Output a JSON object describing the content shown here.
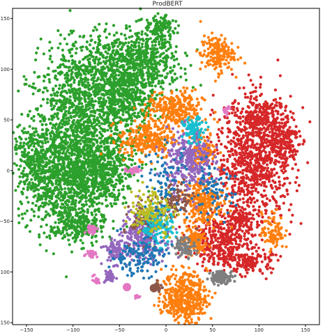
{
  "chart_data": {
    "type": "scatter",
    "title": "ProdBERT",
    "xlabel": "",
    "ylabel": "",
    "xlim": [
      -165,
      165
    ],
    "ylim": [
      -152,
      160
    ],
    "xticks": [
      -150,
      -100,
      -50,
      0,
      50,
      100,
      150
    ],
    "xtick_labels": [
      "−150",
      "−100",
      "−50",
      "0",
      "50",
      "100",
      "150"
    ],
    "yticks": [
      -150,
      -100,
      -50,
      0,
      50,
      100,
      150
    ],
    "ytick_labels": [
      "−150",
      "−100",
      "−50",
      "0",
      "50",
      "100",
      "150"
    ],
    "grid": false,
    "legend": "none",
    "series": [
      {
        "color": "#2ca02c",
        "clusters": [
          [
            -90,
            40,
            50,
            60,
            1400
          ],
          [
            -110,
            -10,
            40,
            35,
            700
          ],
          [
            -60,
            100,
            45,
            30,
            600
          ],
          [
            -20,
            110,
            30,
            25,
            350
          ],
          [
            -140,
            10,
            15,
            25,
            200
          ],
          [
            -95,
            -55,
            25,
            15,
            250
          ],
          [
            -5,
            140,
            12,
            10,
            120
          ],
          [
            -40,
            70,
            25,
            20,
            250
          ],
          [
            -70,
            0,
            25,
            25,
            300
          ],
          [
            -160,
            25,
            3,
            3,
            8
          ]
        ]
      },
      {
        "color": "#d62728",
        "clusters": [
          [
            95,
            10,
            35,
            50,
            900
          ],
          [
            60,
            -70,
            25,
            20,
            350
          ],
          [
            125,
            30,
            15,
            25,
            200
          ],
          [
            90,
            -90,
            20,
            10,
            150
          ],
          [
            100,
            55,
            20,
            15,
            150
          ],
          [
            80,
            -50,
            15,
            10,
            100
          ]
        ]
      },
      {
        "color": "#ff7f0e",
        "clusters": [
          [
            20,
            -125,
            20,
            20,
            450
          ],
          [
            10,
            60,
            25,
            15,
            280
          ],
          [
            -20,
            30,
            25,
            15,
            250
          ],
          [
            40,
            -30,
            18,
            20,
            250
          ],
          [
            55,
            115,
            15,
            15,
            180
          ],
          [
            30,
            -70,
            12,
            10,
            120
          ],
          [
            115,
            -60,
            10,
            15,
            90
          ],
          [
            40,
            20,
            12,
            15,
            120
          ]
        ]
      },
      {
        "color": "#9467bd",
        "clusters": [
          [
            25,
            10,
            20,
            25,
            300
          ],
          [
            -25,
            -65,
            20,
            20,
            250
          ],
          [
            -60,
            -105,
            5,
            5,
            40
          ],
          [
            -55,
            -80,
            10,
            10,
            80
          ]
        ]
      },
      {
        "color": "#8c564b",
        "clusters": [
          [
            10,
            -30,
            15,
            15,
            100
          ],
          [
            -20,
            -50,
            15,
            15,
            90
          ],
          [
            -10,
            -115,
            4,
            4,
            25
          ]
        ]
      },
      {
        "color": "#17becf",
        "clusters": [
          [
            -10,
            -55,
            15,
            15,
            140
          ],
          [
            30,
            40,
            10,
            10,
            80
          ]
        ]
      },
      {
        "color": "#7f7f7f",
        "clusters": [
          [
            60,
            -105,
            10,
            5,
            120
          ],
          [
            20,
            -75,
            10,
            8,
            80
          ]
        ]
      },
      {
        "color": "#bcbd22",
        "clusters": [
          [
            -15,
            -40,
            20,
            20,
            140
          ]
        ]
      },
      {
        "color": "#1f77b4",
        "clusters": [
          [
            -30,
            -85,
            25,
            15,
            140
          ],
          [
            50,
            -20,
            20,
            20,
            80
          ],
          [
            0,
            -10,
            20,
            30,
            80
          ]
        ]
      },
      {
        "color": "#e377c2",
        "clusters": [
          [
            -80,
            -58,
            5,
            3,
            45
          ],
          [
            -35,
            0,
            8,
            3,
            35
          ],
          [
            -80,
            -82,
            5,
            3,
            30
          ],
          [
            -75,
            -108,
            3,
            3,
            20
          ],
          [
            65,
            60,
            3,
            3,
            15
          ],
          [
            -30,
            -125,
            3,
            2,
            8
          ]
        ]
      }
    ],
    "highlight_points": [
      {
        "color": "#e377c2",
        "x": -42,
        "y": -115,
        "label": ""
      },
      {
        "color": "#8c564b",
        "x": -13,
        "y": -116,
        "label": ""
      }
    ]
  }
}
